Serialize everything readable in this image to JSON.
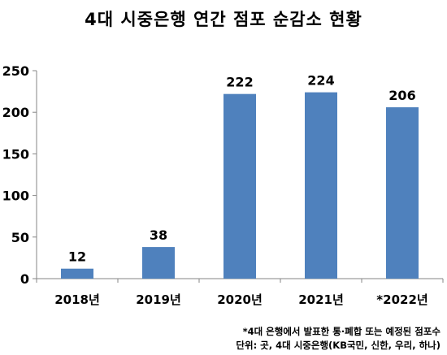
{
  "title": "4대 시중은행 연간 점포 순감소 현황",
  "chart_data": {
    "type": "bar",
    "categories": [
      "2018년",
      "2019년",
      "2020년",
      "2021년",
      "*2022년"
    ],
    "values": [
      12,
      38,
      222,
      224,
      206
    ],
    "data_labels": [
      "12",
      "38",
      "222",
      "224",
      "206"
    ],
    "ylim": [
      0,
      250
    ],
    "yticks": [
      0,
      50,
      100,
      150,
      200,
      250
    ],
    "title": "4대 시중은행 연간 점포 순감소 현황",
    "xlabel": "",
    "ylabel": "",
    "grid": false,
    "bar_color": "#4f81bd"
  },
  "notes": {
    "line1": "*4대 은행에서 발표한 통·폐합 또는 예정된 점포수",
    "line2": "단위: 곳, 4대 시중은행(KB국민, 신한, 우리, 하나)"
  }
}
